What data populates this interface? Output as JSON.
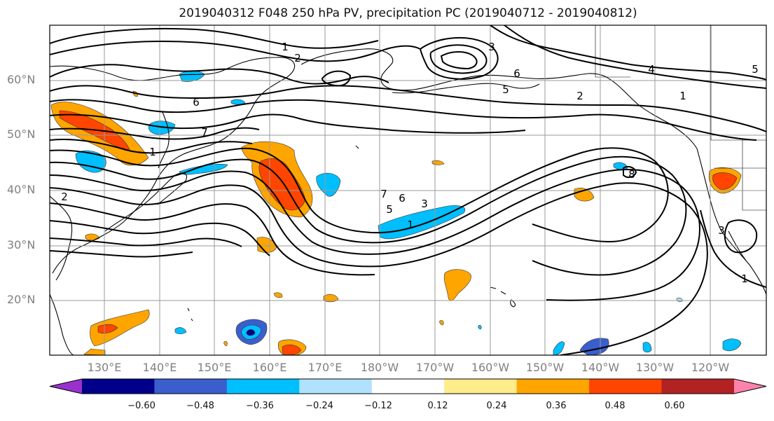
{
  "title": "2019040312 F048 250 hPa PV, precipitation PC (2019040712 - 2019040812)",
  "latitude_labels": [
    "60°N",
    "50°N",
    "40°N",
    "30°N",
    "20°N"
  ],
  "longitude_labels": [
    "130°E",
    "140°E",
    "150°E",
    "160°E",
    "170°E",
    "180°W",
    "170°W",
    "160°W",
    "150°W",
    "140°W",
    "130°W",
    "120°W"
  ],
  "colorbar": {
    "tick_labels": [
      "−0.60",
      "−0.48",
      "−0.36",
      "−0.24",
      "−0.12",
      "0.12",
      "0.24",
      "0.36",
      "0.48",
      "0.60"
    ],
    "colors": [
      "#9932cc",
      "#00008b",
      "#3a5fcd",
      "#00bfff",
      "#b0e2ff",
      "#ffffff",
      "#ffec8b",
      "#ffa500",
      "#ff4500",
      "#b22222",
      "#ff82ab"
    ]
  },
  "contour_labels": [
    "1",
    "2",
    "3",
    "4",
    "5",
    "6",
    "7",
    "8"
  ]
}
